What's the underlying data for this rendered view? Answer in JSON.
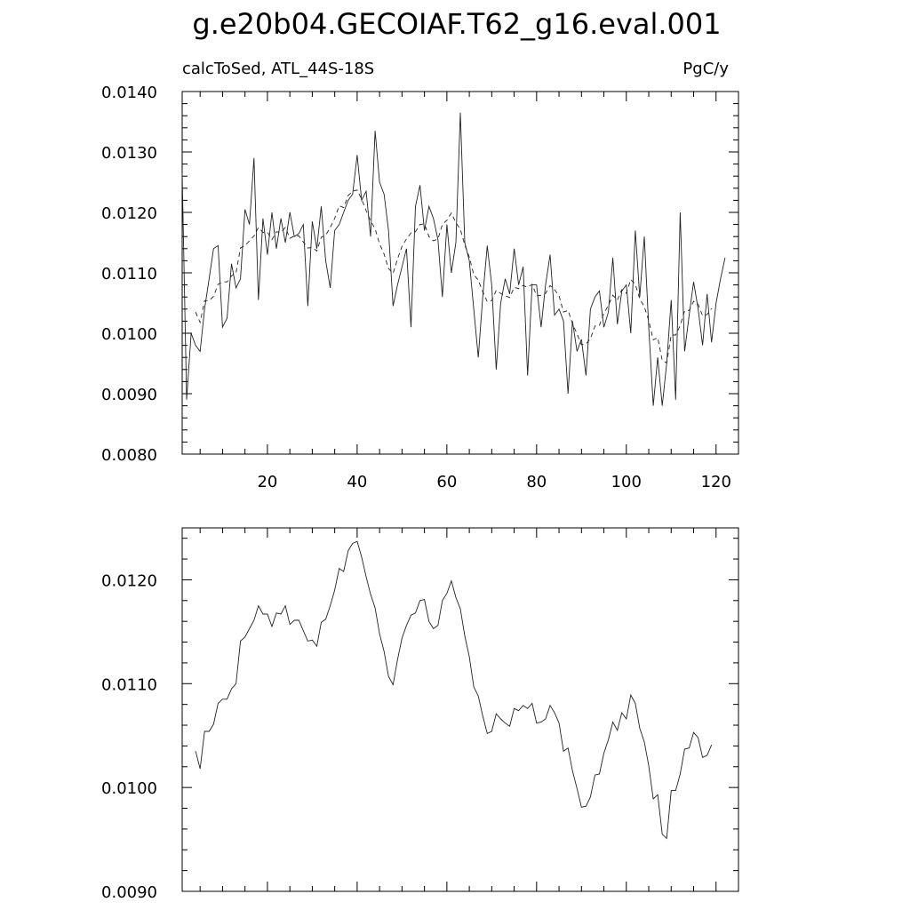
{
  "figure": {
    "title": "g.e20b04.GECOIAF.T62_g16.eval.001",
    "left_subtitle": "calcToSed, ATL_44S-18S",
    "right_subtitle": "PgC/y"
  },
  "chart_data": [
    {
      "type": "line",
      "panel": "top",
      "title": "g.e20b04.GECOIAF.T62_g16.eval.001",
      "subtitle_left": "calcToSed, ATL_44S-18S",
      "subtitle_right": "PgC/y",
      "xlabel": "",
      "ylabel": "",
      "xlim": [
        1,
        125
      ],
      "ylim": [
        0.008,
        0.014
      ],
      "xticks": [
        20,
        40,
        60,
        80,
        100,
        120
      ],
      "yticks": [
        0.008,
        0.009,
        0.01,
        0.011,
        0.012,
        0.013,
        0.014
      ],
      "ytick_labels": [
        "0.0080",
        "0.0090",
        "0.0100",
        "0.0110",
        "0.0120",
        "0.0130",
        "0.0140"
      ],
      "grid": false,
      "series": [
        {
          "style": "solid",
          "x_start": 1,
          "values": [
            0.01265,
            0.0089,
            0.01,
            0.0098,
            0.0097,
            0.0104,
            0.0109,
            0.0114,
            0.01145,
            0.0101,
            0.01025,
            0.01115,
            0.01075,
            0.0109,
            0.01205,
            0.0118,
            0.0129,
            0.01055,
            0.0119,
            0.0113,
            0.012,
            0.0114,
            0.0119,
            0.0115,
            0.012,
            0.0116,
            0.01165,
            0.0118,
            0.01045,
            0.01185,
            0.0114,
            0.0121,
            0.0112,
            0.01075,
            0.0117,
            0.0118,
            0.012,
            0.0122,
            0.0123,
            0.01295,
            0.0122,
            0.01235,
            0.0116,
            0.01335,
            0.0125,
            0.0123,
            0.0117,
            0.01045,
            0.0108,
            0.0111,
            0.0114,
            0.0101,
            0.0121,
            0.01245,
            0.0117,
            0.0121,
            0.0119,
            0.01155,
            0.0106,
            0.0118,
            0.011,
            0.0115,
            0.01365,
            0.0115,
            0.0112,
            0.0104,
            0.0096,
            0.0106,
            0.01145,
            0.0108,
            0.0094,
            0.0105,
            0.0109,
            0.01065,
            0.0114,
            0.0108,
            0.0111,
            0.0093,
            0.0108,
            0.0108,
            0.0101,
            0.0108,
            0.0113,
            0.0103,
            0.0104,
            0.0102,
            0.009,
            0.0102,
            0.0097,
            0.0099,
            0.0093,
            0.0104,
            0.0106,
            0.0107,
            0.0101,
            0.01035,
            0.01125,
            0.01015,
            0.0107,
            0.0108,
            0.01,
            0.0117,
            0.0106,
            0.0116,
            0.0101,
            0.0088,
            0.0096,
            0.0088,
            0.0095,
            0.01055,
            0.0089,
            0.012,
            0.0097,
            0.0103,
            0.01085,
            0.0104,
            0.0098,
            0.01065,
            0.00985,
            0.0105,
            0.0109,
            0.01125
          ]
        },
        {
          "style": "dashed",
          "x_start": 4,
          "values": [
            0.01035,
            0.01018,
            0.01054,
            0.01054,
            0.01061,
            0.01081,
            0.01085,
            0.01085,
            0.01095,
            0.011,
            0.01141,
            0.01145,
            0.01153,
            0.01161,
            0.01175,
            0.01167,
            0.01167,
            0.01155,
            0.01168,
            0.01167,
            0.01175,
            0.01157,
            0.01161,
            0.01161,
            0.01151,
            0.01141,
            0.01142,
            0.01136,
            0.01159,
            0.01162,
            0.01175,
            0.0119,
            0.01211,
            0.01208,
            0.01228,
            0.01235,
            0.01237,
            0.01222,
            0.01203,
            0.01186,
            0.01173,
            0.01148,
            0.01131,
            0.01107,
            0.01099,
            0.01123,
            0.01144,
            0.01156,
            0.01166,
            0.01168,
            0.0118,
            0.01181,
            0.0116,
            0.01153,
            0.01156,
            0.0118,
            0.01187,
            0.01199,
            0.01183,
            0.01172,
            0.01146,
            0.01126,
            0.01097,
            0.01088,
            0.01069,
            0.01052,
            0.01054,
            0.01071,
            0.01066,
            0.01062,
            0.01059,
            0.01076,
            0.01074,
            0.01079,
            0.01076,
            0.01081,
            0.01062,
            0.01063,
            0.01066,
            0.01079,
            0.01072,
            0.01062,
            0.01035,
            0.01038,
            0.01016,
            0.00999,
            0.00981,
            0.00982,
            0.00991,
            0.01012,
            0.01013,
            0.01033,
            0.01046,
            0.01063,
            0.01055,
            0.01072,
            0.01066,
            0.01089,
            0.01081,
            0.01057,
            0.01044,
            0.01021,
            0.00989,
            0.00993,
            0.00955,
            0.00951,
            0.00997,
            0.00997,
            0.01013,
            0.01037,
            0.01038,
            0.01053,
            0.01048,
            0.01029,
            0.01031,
            0.01041
          ]
        }
      ]
    },
    {
      "type": "line",
      "panel": "bottom",
      "xlabel": "",
      "ylabel": "",
      "xlim": [
        1,
        125
      ],
      "ylim": [
        0.009,
        0.0125
      ],
      "xticks": [
        20,
        40,
        60,
        80,
        100,
        120
      ],
      "yticks": [
        0.009,
        0.01,
        0.011,
        0.012
      ],
      "ytick_labels": [
        "0.0090",
        "0.0100",
        "0.0110",
        "0.0120"
      ],
      "grid": false,
      "series": [
        {
          "style": "solid",
          "x_start": 4,
          "values": [
            0.01035,
            0.01018,
            0.01054,
            0.01054,
            0.01061,
            0.01081,
            0.01085,
            0.01085,
            0.01095,
            0.011,
            0.01141,
            0.01145,
            0.01153,
            0.01161,
            0.01175,
            0.01167,
            0.01167,
            0.01155,
            0.01168,
            0.01167,
            0.01175,
            0.01157,
            0.01161,
            0.01161,
            0.01151,
            0.01141,
            0.01142,
            0.01136,
            0.01159,
            0.01162,
            0.01175,
            0.0119,
            0.01211,
            0.01208,
            0.01228,
            0.01235,
            0.01237,
            0.01222,
            0.01203,
            0.01186,
            0.01173,
            0.01148,
            0.01131,
            0.01107,
            0.01099,
            0.01123,
            0.01144,
            0.01156,
            0.01166,
            0.01168,
            0.0118,
            0.01181,
            0.0116,
            0.01153,
            0.01156,
            0.0118,
            0.01187,
            0.01199,
            0.01183,
            0.01172,
            0.01146,
            0.01126,
            0.01097,
            0.01088,
            0.01069,
            0.01052,
            0.01054,
            0.01071,
            0.01066,
            0.01062,
            0.01059,
            0.01076,
            0.01074,
            0.01079,
            0.01076,
            0.01081,
            0.01062,
            0.01063,
            0.01066,
            0.01079,
            0.01072,
            0.01062,
            0.01035,
            0.01038,
            0.01016,
            0.00999,
            0.00981,
            0.00982,
            0.00991,
            0.01012,
            0.01013,
            0.01033,
            0.01046,
            0.01063,
            0.01055,
            0.01072,
            0.01066,
            0.01089,
            0.01081,
            0.01057,
            0.01044,
            0.01021,
            0.00989,
            0.00993,
            0.00955,
            0.00951,
            0.00997,
            0.00997,
            0.01013,
            0.01037,
            0.01038,
            0.01053,
            0.01048,
            0.01029,
            0.01031,
            0.01041
          ]
        }
      ]
    }
  ]
}
